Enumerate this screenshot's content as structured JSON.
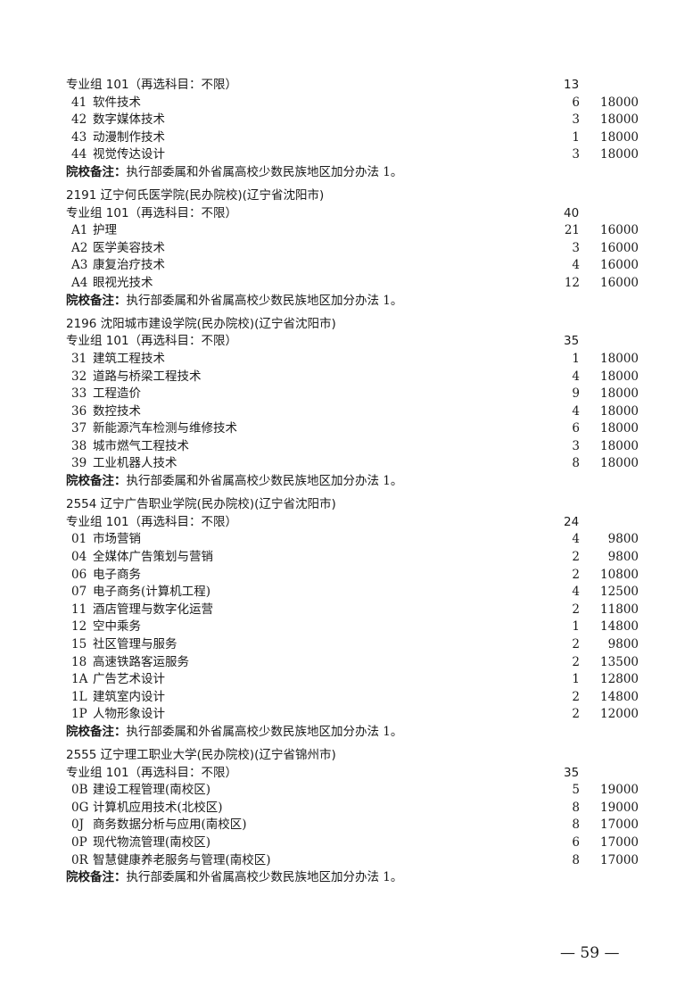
{
  "sections": [
    {
      "school": "",
      "group": "专业组 101（再选科目：不限）",
      "group_count": "13",
      "majors": [
        {
          "code": "41",
          "name": "软件技术",
          "count": "6",
          "fee": "18000"
        },
        {
          "code": "42",
          "name": "数字媒体技术",
          "count": "3",
          "fee": "18000"
        },
        {
          "code": "43",
          "name": "动漫制作技术",
          "count": "1",
          "fee": "18000"
        },
        {
          "code": "44",
          "name": "视觉传达设计",
          "count": "3",
          "fee": "18000"
        }
      ],
      "note_label": "院校备注：",
      "note": "执行部委属和外省属高校少数民族地区加分办法 1。"
    },
    {
      "school": "2191 辽宁何氏医学院(民办院校)(辽宁省沈阳市)",
      "group": "专业组 101（再选科目：不限）",
      "group_count": "40",
      "majors": [
        {
          "code": "A1",
          "name": "护理",
          "count": "21",
          "fee": "16000"
        },
        {
          "code": "A2",
          "name": "医学美容技术",
          "count": "3",
          "fee": "16000"
        },
        {
          "code": "A3",
          "name": "康复治疗技术",
          "count": "4",
          "fee": "16000"
        },
        {
          "code": "A4",
          "name": "眼视光技术",
          "count": "12",
          "fee": "16000"
        }
      ],
      "note_label": "院校备注：",
      "note": "执行部委属和外省属高校少数民族地区加分办法 1。"
    },
    {
      "school": "2196 沈阳城市建设学院(民办院校)(辽宁省沈阳市)",
      "group": "专业组 101（再选科目：不限）",
      "group_count": "35",
      "majors": [
        {
          "code": "31",
          "name": "建筑工程技术",
          "count": "1",
          "fee": "18000"
        },
        {
          "code": "32",
          "name": "道路与桥梁工程技术",
          "count": "4",
          "fee": "18000"
        },
        {
          "code": "33",
          "name": "工程造价",
          "count": "9",
          "fee": "18000"
        },
        {
          "code": "36",
          "name": "数控技术",
          "count": "4",
          "fee": "18000"
        },
        {
          "code": "37",
          "name": "新能源汽车检测与维修技术",
          "count": "6",
          "fee": "18000"
        },
        {
          "code": "38",
          "name": "城市燃气工程技术",
          "count": "3",
          "fee": "18000"
        },
        {
          "code": "39",
          "name": "工业机器人技术",
          "count": "8",
          "fee": "18000"
        }
      ],
      "note_label": "院校备注：",
      "note": "执行部委属和外省属高校少数民族地区加分办法 1。"
    },
    {
      "school": "2554 辽宁广告职业学院(民办院校)(辽宁省沈阳市)",
      "group": "专业组 101（再选科目：不限）",
      "group_count": "24",
      "majors": [
        {
          "code": "01",
          "name": "市场营销",
          "count": "4",
          "fee": "9800"
        },
        {
          "code": "04",
          "name": "全媒体广告策划与营销",
          "count": "2",
          "fee": "9800"
        },
        {
          "code": "06",
          "name": "电子商务",
          "count": "2",
          "fee": "10800"
        },
        {
          "code": "07",
          "name": "电子商务(计算机工程)",
          "count": "4",
          "fee": "12500"
        },
        {
          "code": "11",
          "name": "酒店管理与数字化运营",
          "count": "2",
          "fee": "11800"
        },
        {
          "code": "12",
          "name": "空中乘务",
          "count": "1",
          "fee": "14800"
        },
        {
          "code": "15",
          "name": "社区管理与服务",
          "count": "2",
          "fee": "9800"
        },
        {
          "code": "18",
          "name": "高速铁路客运服务",
          "count": "2",
          "fee": "13500"
        },
        {
          "code": "1A",
          "name": "广告艺术设计",
          "count": "1",
          "fee": "12800"
        },
        {
          "code": "1L",
          "name": "建筑室内设计",
          "count": "2",
          "fee": "14800"
        },
        {
          "code": "1P",
          "name": "人物形象设计",
          "count": "2",
          "fee": "12000"
        }
      ],
      "note_label": "院校备注：",
      "note": "执行部委属和外省属高校少数民族地区加分办法 1。"
    },
    {
      "school": "2555 辽宁理工职业大学(民办院校)(辽宁省锦州市)",
      "group": "专业组 101（再选科目：不限）",
      "group_count": "35",
      "majors": [
        {
          "code": "0B",
          "name": "建设工程管理(南校区)",
          "count": "5",
          "fee": "19000"
        },
        {
          "code": "0G",
          "name": "计算机应用技术(北校区)",
          "count": "8",
          "fee": "19000"
        },
        {
          "code": "0J",
          "name": "商务数据分析与应用(南校区)",
          "count": "8",
          "fee": "17000"
        },
        {
          "code": "0P",
          "name": "现代物流管理(南校区)",
          "count": "6",
          "fee": "17000"
        },
        {
          "code": "0R",
          "name": "智慧健康养老服务与管理(南校区)",
          "count": "8",
          "fee": "17000"
        }
      ],
      "note_label": "院校备注：",
      "note": "执行部委属和外省属高校少数民族地区加分办法 1。"
    }
  ],
  "page_number": "— 59 —"
}
